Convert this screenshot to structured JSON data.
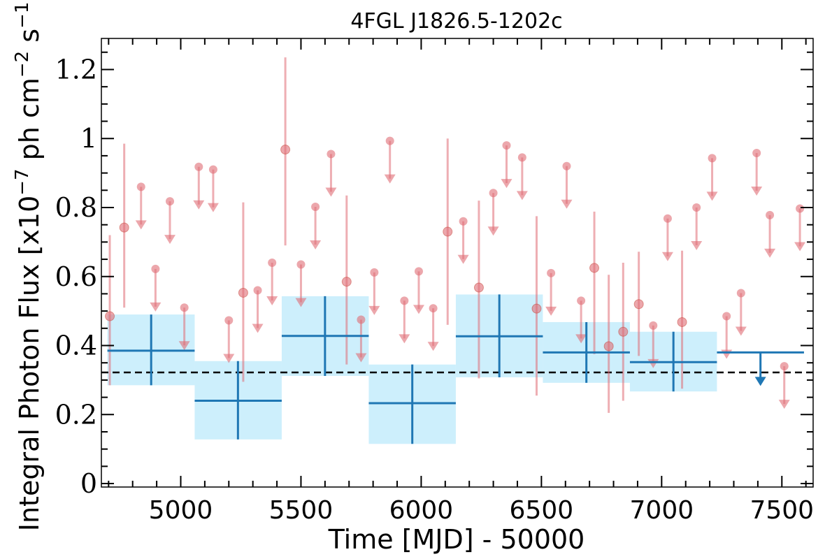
{
  "chart_data": {
    "type": "scatter",
    "title": "4FGL J1826.5-1202c",
    "xlabel": "Time [MJD] - 50000",
    "ylabel": "Integral Photon Flux [x10",
    "ylabel_exp": "−7",
    "ylabel_mid": " ph cm",
    "ylabel_exp2": "−2",
    "ylabel_mid2": " s",
    "ylabel_exp3": "−1",
    "ylabel_end": "]",
    "xlim": [
      4670,
      7630
    ],
    "ylim": [
      -0.01,
      1.29
    ],
    "x_ticks": [
      5000,
      5500,
      6000,
      6500,
      7000,
      7500
    ],
    "y_ticks": [
      0,
      0.2,
      0.4,
      0.6,
      0.8,
      1,
      1.2
    ],
    "y_tick_labels": [
      "0",
      "0.2",
      "0.4",
      "0.6",
      "0.8",
      "1",
      "1.2"
    ],
    "grid": false,
    "average_flux": 0.322,
    "colors": {
      "bins": "#1f77b4",
      "bin_band": "#cdeffc",
      "points": "#e06c75",
      "average_line": "#000000"
    },
    "series": [
      {
        "kind": "binned",
        "bins": [
          {
            "x0": 4695,
            "x1": 5058,
            "xc": 4877,
            "y": 0.385,
            "ylo": 0.285,
            "yhi": 0.49
          },
          {
            "x0": 5058,
            "x1": 5420,
            "xc": 5238,
            "y": 0.24,
            "ylo": 0.128,
            "yhi": 0.355
          },
          {
            "x0": 5420,
            "x1": 5782,
            "xc": 5600,
            "y": 0.428,
            "ylo": 0.312,
            "yhi": 0.543
          },
          {
            "x0": 5782,
            "x1": 6144,
            "xc": 5963,
            "y": 0.233,
            "ylo": 0.115,
            "yhi": 0.345
          },
          {
            "x0": 6144,
            "x1": 6506,
            "xc": 6325,
            "y": 0.427,
            "ylo": 0.308,
            "yhi": 0.548
          },
          {
            "x0": 6506,
            "x1": 6868,
            "xc": 6687,
            "y": 0.38,
            "ylo": 0.292,
            "yhi": 0.468
          },
          {
            "x0": 6868,
            "x1": 7230,
            "xc": 7049,
            "y": 0.352,
            "ylo": 0.267,
            "yhi": 0.44
          },
          {
            "x0": 7230,
            "x1": 7592,
            "xc": 7411,
            "y": 0.38,
            "upper_limit": true
          }
        ]
      },
      {
        "kind": "points",
        "detections": [
          {
            "x": 4705,
            "y": 0.485,
            "ylo": 0.285,
            "yhi": 0.72
          },
          {
            "x": 4765,
            "y": 0.742,
            "ylo": 0.51,
            "yhi": 0.985
          },
          {
            "x": 5260,
            "y": 0.553,
            "ylo": 0.295,
            "yhi": 0.815
          },
          {
            "x": 5435,
            "y": 0.968,
            "ylo": 0.69,
            "yhi": 1.235
          },
          {
            "x": 5690,
            "y": 0.585,
            "ylo": 0.345,
            "yhi": 0.835
          },
          {
            "x": 6110,
            "y": 0.73,
            "ylo": 0.46,
            "yhi": 1.0
          },
          {
            "x": 6240,
            "y": 0.568,
            "ylo": 0.305,
            "yhi": 0.82
          },
          {
            "x": 6480,
            "y": 0.507,
            "ylo": 0.255,
            "yhi": 0.775
          },
          {
            "x": 6720,
            "y": 0.625,
            "ylo": 0.375,
            "yhi": 0.788
          },
          {
            "x": 6780,
            "y": 0.398,
            "ylo": 0.205,
            "yhi": 0.605
          },
          {
            "x": 6840,
            "y": 0.44,
            "ylo": 0.24,
            "yhi": 0.64
          },
          {
            "x": 6905,
            "y": 0.52,
            "ylo": 0.37,
            "yhi": 0.672
          },
          {
            "x": 7085,
            "y": 0.468,
            "ylo": 0.275,
            "yhi": 0.675
          }
        ],
        "upper_limits": [
          {
            "x": 4835,
            "y": 0.86
          },
          {
            "x": 4895,
            "y": 0.622
          },
          {
            "x": 4955,
            "y": 0.818
          },
          {
            "x": 5015,
            "y": 0.51
          },
          {
            "x": 5075,
            "y": 0.918
          },
          {
            "x": 5135,
            "y": 0.91
          },
          {
            "x": 5200,
            "y": 0.473
          },
          {
            "x": 5320,
            "y": 0.56
          },
          {
            "x": 5380,
            "y": 0.64
          },
          {
            "x": 5500,
            "y": 0.635
          },
          {
            "x": 5560,
            "y": 0.802
          },
          {
            "x": 5625,
            "y": 0.955
          },
          {
            "x": 5750,
            "y": 0.475
          },
          {
            "x": 5805,
            "y": 0.612
          },
          {
            "x": 5870,
            "y": 0.993
          },
          {
            "x": 5930,
            "y": 0.53
          },
          {
            "x": 5990,
            "y": 0.615
          },
          {
            "x": 6050,
            "y": 0.508
          },
          {
            "x": 6175,
            "y": 0.76
          },
          {
            "x": 6300,
            "y": 0.842
          },
          {
            "x": 6355,
            "y": 0.98
          },
          {
            "x": 6420,
            "y": 0.945
          },
          {
            "x": 6540,
            "y": 0.61
          },
          {
            "x": 6605,
            "y": 0.92
          },
          {
            "x": 6665,
            "y": 0.53
          },
          {
            "x": 6965,
            "y": 0.458
          },
          {
            "x": 7025,
            "y": 0.768
          },
          {
            "x": 7145,
            "y": 0.8
          },
          {
            "x": 7210,
            "y": 0.943
          },
          {
            "x": 7270,
            "y": 0.485
          },
          {
            "x": 7330,
            "y": 0.552
          },
          {
            "x": 7395,
            "y": 0.958
          },
          {
            "x": 7450,
            "y": 0.778
          },
          {
            "x": 7510,
            "y": 0.34
          },
          {
            "x": 7575,
            "y": 0.797
          }
        ]
      }
    ]
  }
}
